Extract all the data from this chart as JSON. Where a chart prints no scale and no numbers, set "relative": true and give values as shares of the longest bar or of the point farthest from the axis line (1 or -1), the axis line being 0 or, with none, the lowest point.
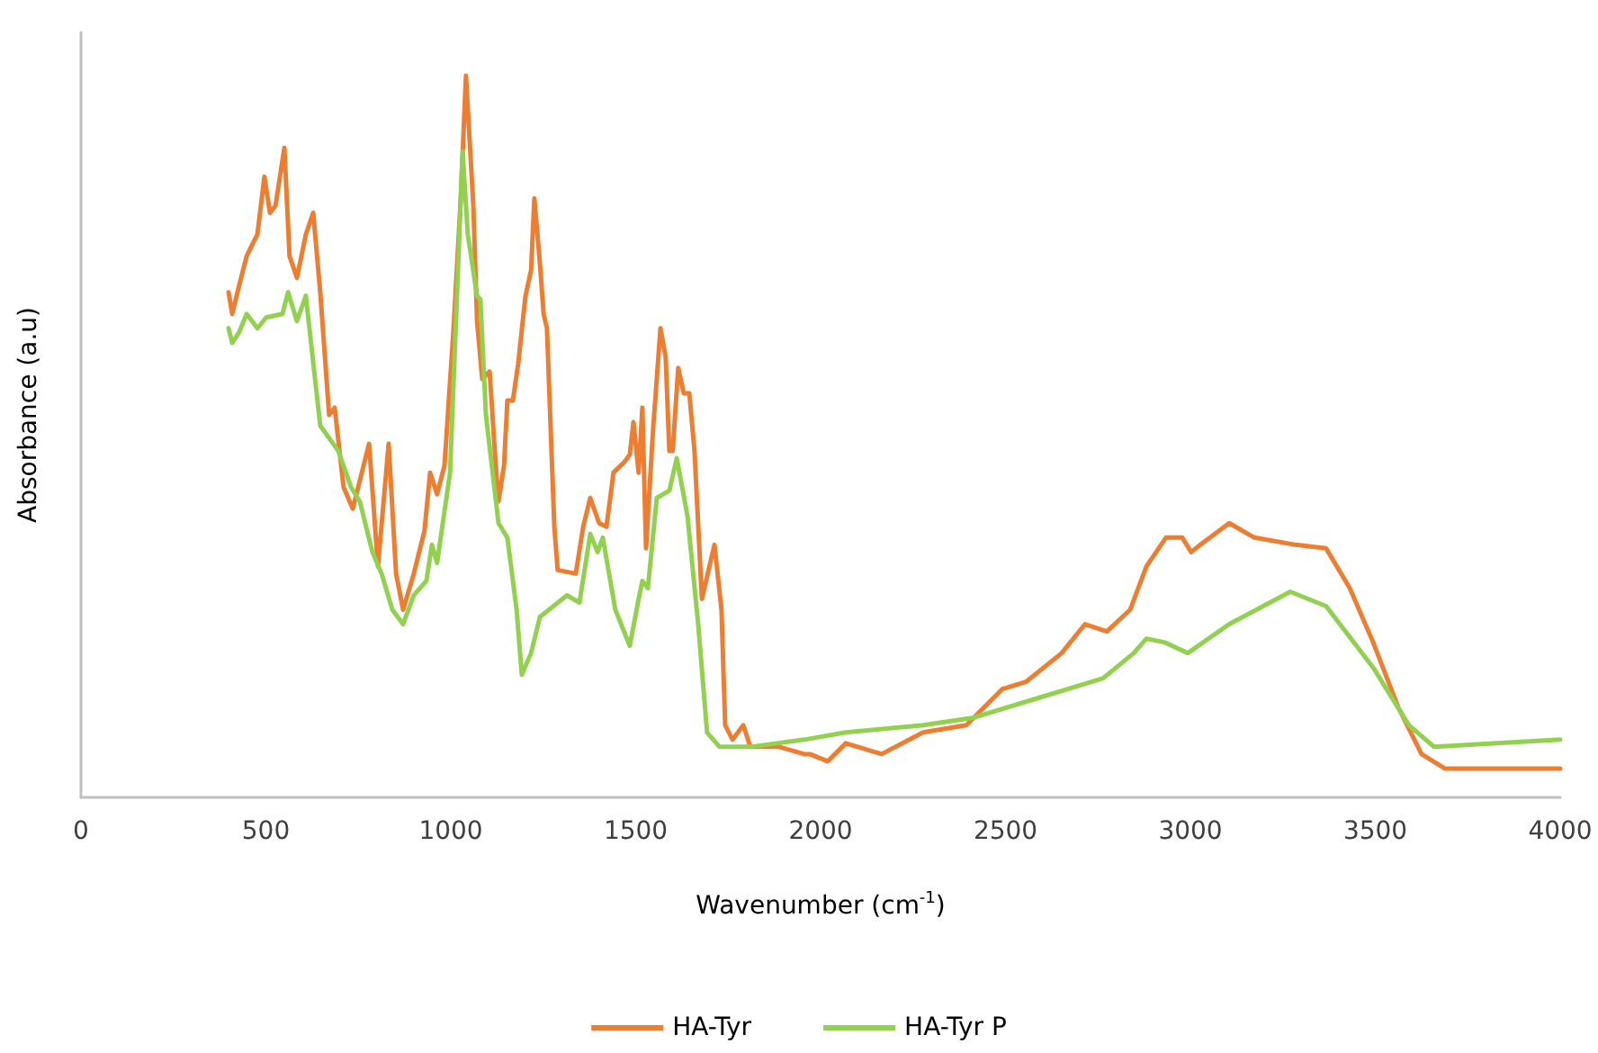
{
  "chart_data": {
    "type": "line",
    "relative": true,
    "xlabel": "Wavenumber (cm$^{-1}$)",
    "ylabel": "Absorbance (a.u)",
    "xlim": [
      0,
      4000
    ],
    "xticks": [
      0,
      500,
      1000,
      1500,
      2000,
      2500,
      3000,
      3500,
      4000
    ],
    "grid": false,
    "legend": "bottom",
    "marker": "none",
    "line_style": "solid",
    "series": [
      {
        "name": "HA-Tyr",
        "color": "#ed7d31",
        "x": [
          399,
          409,
          428,
          448,
          467,
          477,
          496,
          511,
          526,
          550,
          564,
          584,
          608,
          628,
          647,
          671,
          686,
          710,
          735,
          779,
          803,
          832,
          852,
          871,
          900,
          929,
          944,
          963,
          983,
          1007,
          1027,
          1041,
          1061,
          1071,
          1085,
          1105,
          1119,
          1129,
          1144,
          1153,
          1168,
          1182,
          1202,
          1217,
          1226,
          1241,
          1251,
          1260,
          1280,
          1289,
          1338,
          1358,
          1377,
          1401,
          1421,
          1440,
          1470,
          1484,
          1494,
          1508,
          1518,
          1528,
          1547,
          1567,
          1581,
          1591,
          1600,
          1615,
          1630,
          1645,
          1659,
          1679,
          1713,
          1732,
          1742,
          1762,
          1791,
          1810,
          1888,
          1956,
          1971,
          2019,
          2068,
          2165,
          2277,
          2394,
          2491,
          2555,
          2652,
          2715,
          2774,
          2837,
          2881,
          2934,
          2978,
          3002,
          3027,
          3105,
          3173,
          3285,
          3367,
          3431,
          3494,
          3562,
          3625,
          3688,
          4000
        ],
        "values": [
          0.7,
          0.67,
          0.71,
          0.75,
          0.77,
          0.78,
          0.86,
          0.81,
          0.82,
          0.9,
          0.75,
          0.72,
          0.78,
          0.81,
          0.7,
          0.53,
          0.54,
          0.43,
          0.4,
          0.49,
          0.32,
          0.49,
          0.31,
          0.26,
          0.31,
          0.37,
          0.45,
          0.42,
          0.46,
          0.645,
          0.83,
          1.0,
          0.82,
          0.66,
          0.58,
          0.59,
          0.48,
          0.41,
          0.46,
          0.55,
          0.55,
          0.6,
          0.695,
          0.73,
          0.83,
          0.74,
          0.67,
          0.65,
          0.375,
          0.315,
          0.31,
          0.375,
          0.415,
          0.38,
          0.375,
          0.45,
          0.465,
          0.475,
          0.52,
          0.45,
          0.54,
          0.345,
          0.51,
          0.65,
          0.61,
          0.48,
          0.48,
          0.595,
          0.56,
          0.56,
          0.48,
          0.275,
          0.35,
          0.26,
          0.1,
          0.08,
          0.1,
          0.07,
          0.07,
          0.06,
          0.06,
          0.05,
          0.075,
          0.06,
          0.09,
          0.1,
          0.15,
          0.16,
          0.2,
          0.24,
          0.23,
          0.26,
          0.32,
          0.36,
          0.36,
          0.34,
          0.35,
          0.38,
          0.36,
          0.35,
          0.345,
          0.29,
          0.215,
          0.125,
          0.06,
          0.04,
          0.04
        ]
      },
      {
        "name": "HA-Tyr P",
        "color": "#92d050",
        "x": [
          399,
          409,
          428,
          448,
          477,
          501,
          545,
          560,
          584,
          608,
          647,
          696,
          730,
          754,
          788,
          813,
          842,
          871,
          900,
          934,
          949,
          963,
          998,
          1032,
          1046,
          1071,
          1080,
          1095,
          1129,
          1153,
          1178,
          1192,
          1217,
          1241,
          1314,
          1348,
          1377,
          1397,
          1411,
          1445,
          1484,
          1508,
          1518,
          1533,
          1557,
          1591,
          1611,
          1640,
          1669,
          1693,
          1727,
          1810,
          1956,
          2068,
          2277,
          2409,
          2603,
          2764,
          2847,
          2881,
          2929,
          2993,
          3105,
          3270,
          3367,
          3494,
          3591,
          3659,
          4000
        ],
        "values": [
          0.65,
          0.63,
          0.645,
          0.67,
          0.65,
          0.665,
          0.67,
          0.7,
          0.66,
          0.695,
          0.515,
          0.48,
          0.43,
          0.41,
          0.34,
          0.31,
          0.26,
          0.24,
          0.28,
          0.3,
          0.35,
          0.325,
          0.45,
          0.895,
          0.78,
          0.695,
          0.69,
          0.53,
          0.38,
          0.36,
          0.26,
          0.17,
          0.2,
          0.25,
          0.28,
          0.27,
          0.365,
          0.34,
          0.36,
          0.26,
          0.21,
          0.275,
          0.3,
          0.29,
          0.415,
          0.425,
          0.47,
          0.39,
          0.24,
          0.09,
          0.07,
          0.07,
          0.08,
          0.09,
          0.1,
          0.11,
          0.14,
          0.165,
          0.2,
          0.22,
          0.215,
          0.2,
          0.24,
          0.285,
          0.265,
          0.18,
          0.1,
          0.07,
          0.08
        ]
      }
    ]
  }
}
